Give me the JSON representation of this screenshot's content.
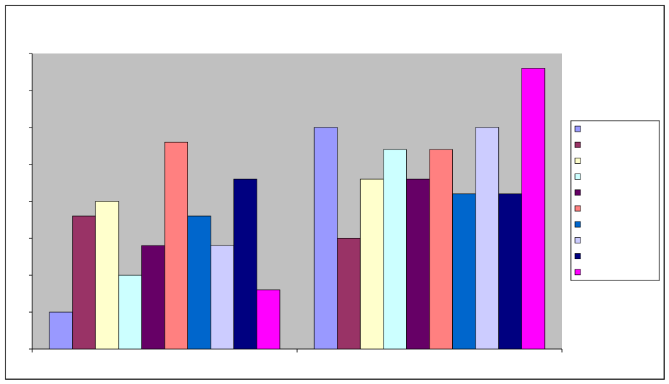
{
  "chart_data": {
    "type": "bar",
    "categories": [
      null,
      null
    ],
    "series": [
      {
        "name": null,
        "color": "#9999ff",
        "values": [
          1,
          6
        ]
      },
      {
        "name": null,
        "color": "#993366",
        "values": [
          3.6,
          3
        ]
      },
      {
        "name": null,
        "color": "#ffffcc",
        "values": [
          4,
          4.6
        ]
      },
      {
        "name": null,
        "color": "#ccffff",
        "values": [
          2,
          5.4
        ]
      },
      {
        "name": null,
        "color": "#660066",
        "values": [
          2.8,
          4.6
        ]
      },
      {
        "name": null,
        "color": "#ff8080",
        "values": [
          5.6,
          5.4
        ]
      },
      {
        "name": null,
        "color": "#0066cc",
        "values": [
          3.6,
          4.2
        ]
      },
      {
        "name": null,
        "color": "#ccccff",
        "values": [
          2.8,
          6
        ]
      },
      {
        "name": null,
        "color": "#000080",
        "values": [
          4.6,
          4.2
        ]
      },
      {
        "name": null,
        "color": "#ff00ff",
        "values": [
          1.6,
          7.6
        ]
      }
    ],
    "ylim": [
      0,
      8
    ],
    "yticks": [
      0,
      1,
      2,
      3,
      4,
      5,
      6,
      7,
      8
    ],
    "plot_background": "#c0c0c0",
    "legend": "right"
  }
}
